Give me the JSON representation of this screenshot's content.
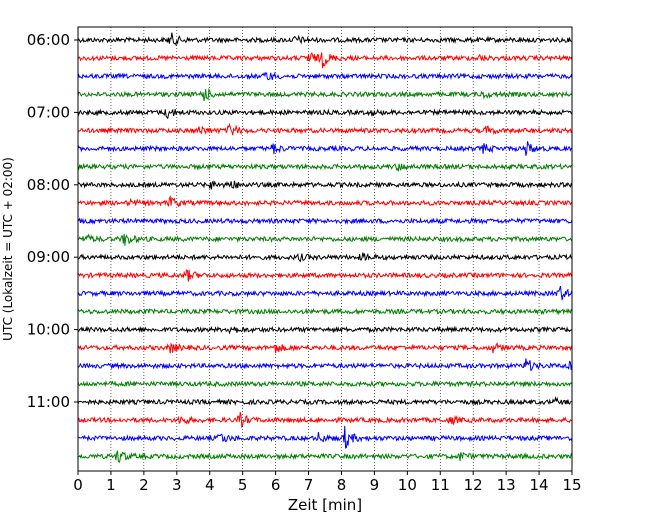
{
  "chart_data": {
    "type": "line",
    "subtype": "helicorder",
    "xlabel": "Zeit  [min]",
    "ylabel": "UTC (Lokalzeit = UTC + 02:00)",
    "xlim": [
      0,
      15
    ],
    "x_ticks": [
      0,
      1,
      2,
      3,
      4,
      5,
      6,
      7,
      8,
      9,
      10,
      11,
      12,
      13,
      14,
      15
    ],
    "y_tick_labels": [
      "06:00",
      "07:00",
      "08:00",
      "09:00",
      "10:00",
      "11:00"
    ],
    "grid": "vertical dotted",
    "trace_colors": [
      "#000000",
      "#ff0000",
      "#0000ff",
      "#008000"
    ],
    "traces": [
      {
        "start": "06:00",
        "color": "#000000",
        "events": [
          [
            2.8,
            1.0
          ],
          [
            6.6,
            0.5
          ]
        ]
      },
      {
        "start": "06:15",
        "color": "#ff0000",
        "events": [
          [
            7.0,
            0.9
          ],
          [
            7.4,
            1.2
          ],
          [
            12.2,
            0.3
          ]
        ]
      },
      {
        "start": "06:30",
        "color": "#0000ff",
        "events": [
          [
            5.7,
            0.7
          ]
        ]
      },
      {
        "start": "06:45",
        "color": "#008000",
        "events": [
          [
            3.8,
            1.0
          ],
          [
            12.3,
            0.4
          ]
        ]
      },
      {
        "start": "07:00",
        "color": "#000000",
        "events": [
          [
            2.7,
            0.8
          ],
          [
            8.9,
            0.3
          ]
        ]
      },
      {
        "start": "07:15",
        "color": "#ff0000",
        "events": [
          [
            3.7,
            0.6
          ],
          [
            4.6,
            1.0
          ],
          [
            12.4,
            0.5
          ]
        ]
      },
      {
        "start": "07:30",
        "color": "#0000ff",
        "events": [
          [
            5.9,
            0.7
          ],
          [
            12.3,
            0.6
          ],
          [
            13.6,
            1.0
          ]
        ]
      },
      {
        "start": "07:45",
        "color": "#008000",
        "events": [
          [
            9.7,
            0.5
          ]
        ]
      },
      {
        "start": "08:00",
        "color": "#000000",
        "events": [
          [
            4.0,
            0.5
          ],
          [
            4.6,
            0.7
          ]
        ]
      },
      {
        "start": "08:15",
        "color": "#ff0000",
        "events": [
          [
            1.6,
            0.3
          ],
          [
            2.8,
            0.8
          ]
        ]
      },
      {
        "start": "08:30",
        "color": "#0000ff",
        "events": []
      },
      {
        "start": "08:45",
        "color": "#008000",
        "events": [
          [
            0.2,
            0.6
          ],
          [
            1.4,
            1.0
          ]
        ]
      },
      {
        "start": "09:00",
        "color": "#000000",
        "events": [
          [
            6.7,
            0.4
          ],
          [
            8.6,
            0.5
          ]
        ]
      },
      {
        "start": "09:15",
        "color": "#ff0000",
        "events": [
          [
            3.3,
            0.8
          ]
        ]
      },
      {
        "start": "09:30",
        "color": "#0000ff",
        "events": [
          [
            14.6,
            1.2
          ]
        ]
      },
      {
        "start": "09:45",
        "color": "#008000",
        "events": []
      },
      {
        "start": "10:00",
        "color": "#000000",
        "events": [
          [
            4.6,
            0.6
          ]
        ]
      },
      {
        "start": "10:15",
        "color": "#ff0000",
        "events": [
          [
            2.8,
            0.7
          ],
          [
            6.0,
            0.6
          ],
          [
            12.6,
            0.6
          ]
        ]
      },
      {
        "start": "10:30",
        "color": "#0000ff",
        "events": [
          [
            13.6,
            1.0
          ],
          [
            14.9,
            0.8
          ]
        ]
      },
      {
        "start": "10:45",
        "color": "#008000",
        "events": []
      },
      {
        "start": "11:00",
        "color": "#000000",
        "events": [
          [
            14.5,
            0.3
          ]
        ]
      },
      {
        "start": "11:15",
        "color": "#ff0000",
        "events": [
          [
            3.1,
            0.6
          ],
          [
            4.9,
            1.0
          ],
          [
            11.3,
            0.5
          ]
        ]
      },
      {
        "start": "11:30",
        "color": "#0000ff",
        "events": [
          [
            4.3,
            0.8
          ],
          [
            7.3,
            0.6
          ],
          [
            8.1,
            1.5
          ]
        ]
      },
      {
        "start": "11:45",
        "color": "#008000",
        "events": [
          [
            1.2,
            1.0
          ],
          [
            11.6,
            0.5
          ]
        ]
      }
    ]
  }
}
